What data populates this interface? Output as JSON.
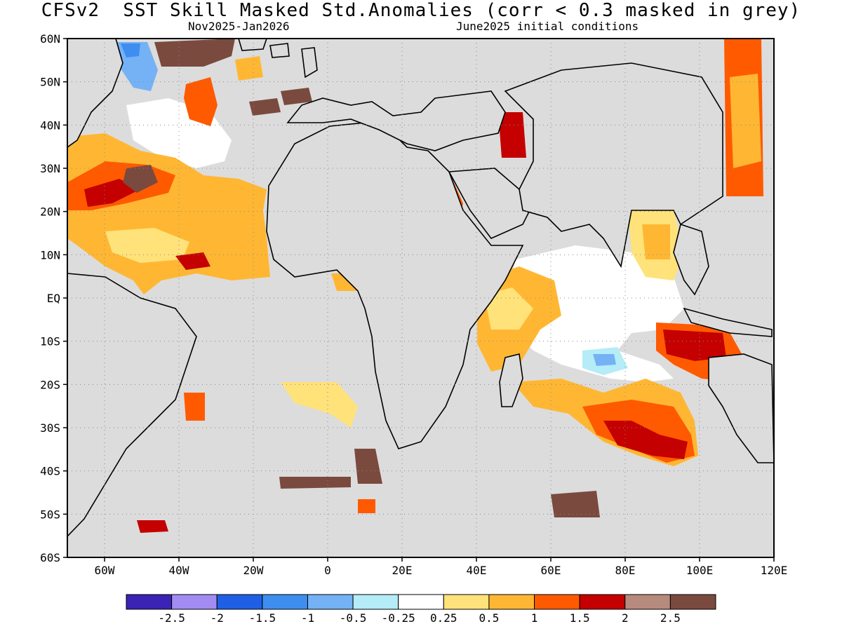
{
  "title": "CFSv2  SST Skill Masked Std.Anomalies (corr < 0.3 masked in grey)",
  "period": "Nov2025-Jan2026",
  "initial_conditions": "June2025 initial conditions",
  "colors": {
    "mask": "#dcdcdc",
    "land": "#dcdcdc",
    "coast": "#000000"
  },
  "map": {
    "lon_min": -70,
    "lon_max": 120,
    "lat_min": -60,
    "lat_max": 60,
    "lat_labels": [
      "60N",
      "50N",
      "40N",
      "30N",
      "20N",
      "10N",
      "EQ",
      "10S",
      "20S",
      "30S",
      "40S",
      "50S",
      "60S"
    ],
    "lat_values": [
      60,
      50,
      40,
      30,
      20,
      10,
      0,
      -10,
      -20,
      -30,
      -40,
      -50,
      -60
    ],
    "lon_labels": [
      "60W",
      "40W",
      "20W",
      "0",
      "20E",
      "40E",
      "60E",
      "80E",
      "100E",
      "120E"
    ],
    "lon_values": [
      -60,
      -40,
      -20,
      0,
      20,
      40,
      60,
      80,
      100,
      120
    ]
  },
  "colorbar": {
    "bins": [
      {
        "color": "#3a23b5"
      },
      {
        "color": "#a28cf2"
      },
      {
        "color": "#1f5fe6"
      },
      {
        "color": "#3e8ef0"
      },
      {
        "color": "#74b2f5"
      },
      {
        "color": "#b4ecf7"
      },
      {
        "color": "#ffffff"
      },
      {
        "color": "#ffe27a"
      },
      {
        "color": "#ffb733"
      },
      {
        "color": "#ff5a00"
      },
      {
        "color": "#c40000"
      },
      {
        "color": "#b68a7c"
      },
      {
        "color": "#7a4a3f"
      }
    ],
    "labels": [
      "-2.5",
      "-2",
      "-1.5",
      "-1",
      "-0.5",
      "-0.25",
      "0.25",
      "0.5",
      "1",
      "1.5",
      "2",
      "2.5"
    ]
  }
}
